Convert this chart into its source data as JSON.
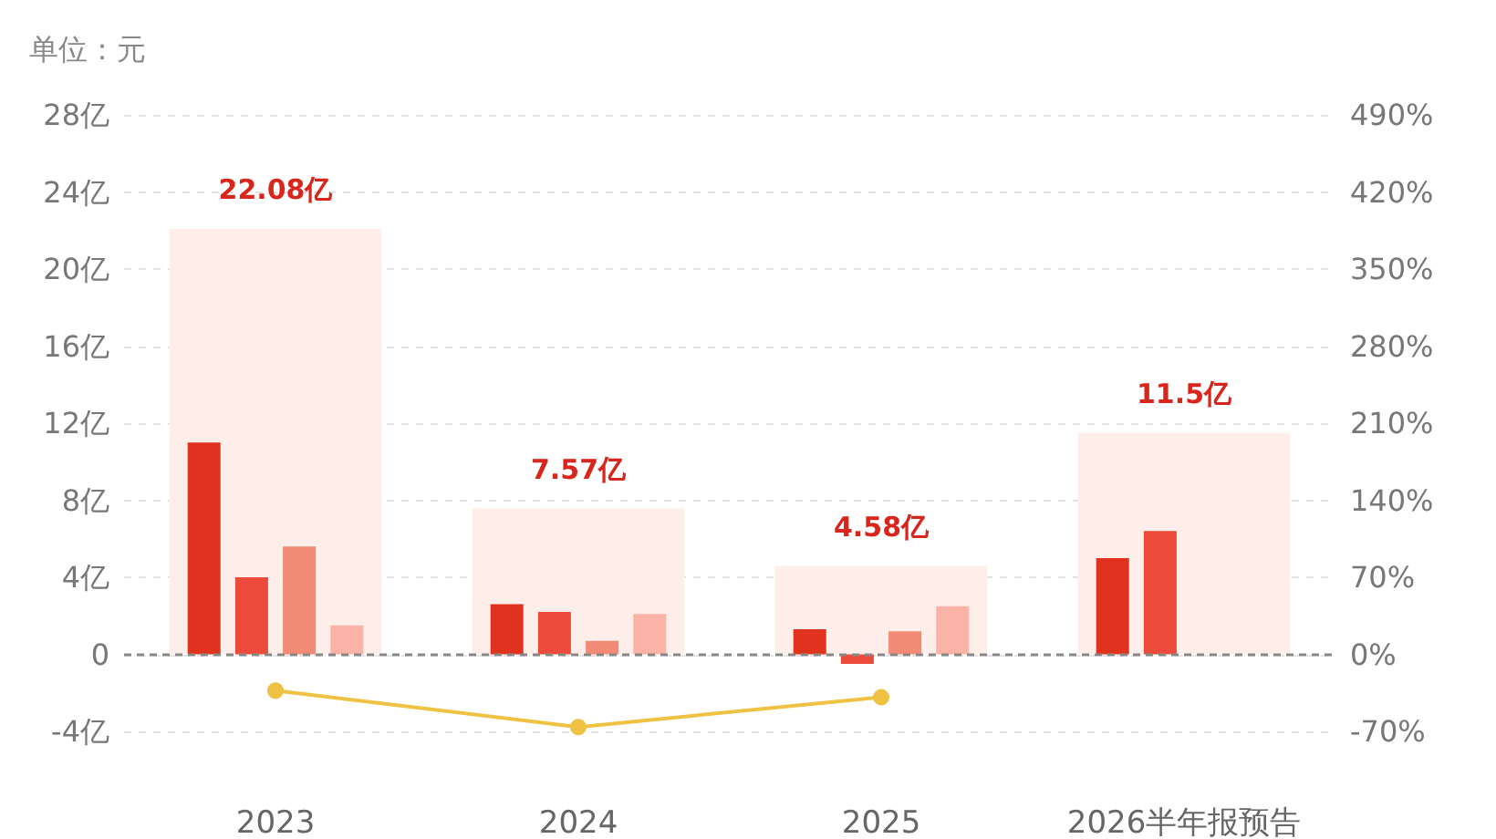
{
  "chart_data": {
    "type": "bar",
    "ylabel": "单位：元",
    "categories": [
      "2023",
      "2024",
      "2025",
      "2026半年报预告"
    ],
    "series": [
      {
        "color": "#fdeeea",
        "values": [
          22.08,
          7.57,
          4.58,
          11.5
        ],
        "value_labels": [
          "22.08亿",
          "7.57亿",
          "4.58亿",
          "11.5亿"
        ]
      },
      {
        "color": "#e0321f",
        "values": [
          11.0,
          2.6,
          1.3,
          5.0
        ]
      },
      {
        "color": "#ec4b3b",
        "values": [
          4.0,
          2.2,
          -0.5,
          6.4
        ]
      },
      {
        "color": "#f28b76",
        "values": [
          5.6,
          0.7,
          1.2,
          null
        ]
      },
      {
        "color": "#fab3a6",
        "values": [
          1.5,
          2.1,
          2.5,
          null
        ]
      },
      {
        "type": "line",
        "axis": "y2",
        "color": "#f0c243",
        "values": [
          -33,
          -66,
          -39,
          null
        ]
      }
    ],
    "ylim": [
      -4,
      28
    ],
    "yticks": [
      {
        "value": -4,
        "label": "-4亿"
      },
      0,
      {
        "value": 4,
        "label": "4亿"
      },
      {
        "value": 8,
        "label": "8亿"
      },
      {
        "value": 12,
        "label": "12亿"
      },
      {
        "value": 16,
        "label": "16亿"
      },
      {
        "value": 20,
        "label": "20亿"
      },
      {
        "value": 24,
        "label": "24亿"
      },
      {
        "value": 28,
        "label": "28亿"
      }
    ],
    "y2lim": [
      -70,
      490
    ],
    "y2ticks": [
      {
        "value": -70,
        "label": "-70%"
      },
      {
        "value": 0,
        "label": "0%"
      },
      {
        "value": 70,
        "label": "70%"
      },
      {
        "value": 140,
        "label": "140%"
      },
      {
        "value": 210,
        "label": "210%"
      },
      {
        "value": 280,
        "label": "280%"
      },
      {
        "value": 350,
        "label": "350%"
      },
      {
        "value": 420,
        "label": "420%"
      },
      {
        "value": 490,
        "label": "490%"
      }
    ],
    "ref_lines": [
      {
        "axis": "y",
        "value": 0,
        "color": "#888888",
        "line_style": "dashed"
      }
    ],
    "grid": "y",
    "marker": "circle",
    "line_style": "solid"
  }
}
